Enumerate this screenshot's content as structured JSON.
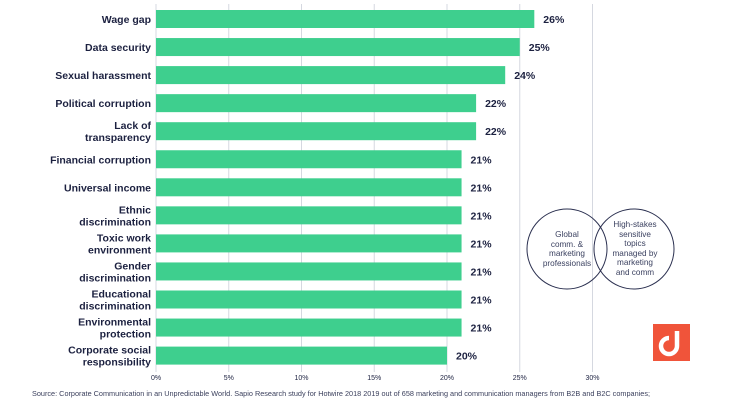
{
  "chart_data": {
    "type": "bar",
    "orientation": "horizontal",
    "categories": [
      [
        "Wage gap"
      ],
      [
        "Data security"
      ],
      [
        "Sexual harassment"
      ],
      [
        "Political corruption"
      ],
      [
        "Lack of",
        "transparency"
      ],
      [
        "Financial corruption"
      ],
      [
        "Universal income"
      ],
      [
        "Ethnic",
        "discrimination"
      ],
      [
        "Toxic work",
        "environment"
      ],
      [
        "Gender",
        "discrimination"
      ],
      [
        "Educational",
        "discrimination"
      ],
      [
        "Environmental",
        "protection"
      ],
      [
        "Corporate social",
        "responsibility"
      ]
    ],
    "values": [
      26,
      25,
      24,
      22,
      22,
      21,
      21,
      21,
      21,
      21,
      21,
      21,
      20
    ],
    "value_labels": [
      "26%",
      "25%",
      "24%",
      "22%",
      "22%",
      "21%",
      "21%",
      "21%",
      "21%",
      "21%",
      "21%",
      "21%",
      "20%"
    ],
    "xlim": [
      0,
      30
    ],
    "xticks": [
      0,
      5,
      10,
      15,
      20,
      25,
      30
    ],
    "xtick_labels": [
      "0%",
      "5%",
      "10%",
      "15%",
      "20%",
      "25%",
      "30%"
    ],
    "grid": true,
    "colors": {
      "bar": "#3ecf8e",
      "grid": "#d5d8e0",
      "text": "#1c2140"
    }
  },
  "venn": {
    "left_text": [
      "Global",
      "comm. &",
      "marketing",
      "professionals"
    ],
    "right_text": [
      "High-stakes",
      "sensitive",
      "topics",
      "managed by",
      "marketing",
      "and comm"
    ],
    "stroke_color": "#2b3050"
  },
  "logo": {
    "icon": "brand-logo-icon",
    "color": "#f0543a"
  },
  "source": "Source: Corporate Communication in an Unpredictable World. Sapio Research study for Hotwire 2018 2019 out of 658 marketing and communication managers from B2B and B2C companies;"
}
